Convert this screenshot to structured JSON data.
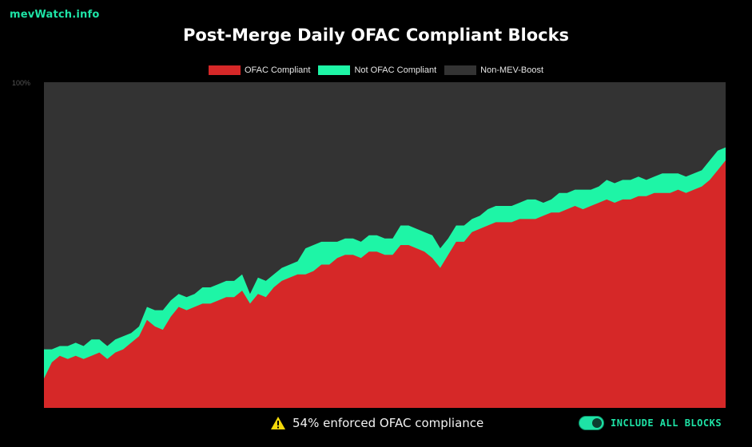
{
  "brand": "mevWatch.info",
  "chart_data": {
    "type": "area",
    "stacked": true,
    "percent": true,
    "title": "Post-Merge Daily OFAC Compliant Blocks",
    "ylim": [
      0,
      100
    ],
    "y_top_tick": "100%",
    "legend_position": "top",
    "grid": false,
    "series": [
      {
        "name": "OFAC Compliant",
        "color": "#d62828",
        "values": [
          9,
          14,
          16,
          15,
          16,
          15,
          16,
          17,
          15,
          17,
          18,
          20,
          22,
          27,
          25,
          24,
          28,
          31,
          30,
          31,
          32,
          32,
          33,
          34,
          34,
          36,
          32,
          35,
          34,
          37,
          39,
          40,
          41,
          41,
          42,
          44,
          44,
          46,
          47,
          47,
          46,
          48,
          48,
          47,
          47,
          50,
          50,
          49,
          48,
          46,
          43,
          47,
          51,
          51,
          54,
          55,
          56,
          57,
          57,
          57,
          58,
          58,
          58,
          59,
          60,
          60,
          61,
          62,
          61,
          62,
          63,
          64,
          63,
          64,
          64,
          65,
          65,
          66,
          66,
          66,
          67,
          66,
          67,
          68,
          70,
          73,
          76
        ]
      },
      {
        "name": "Not OFAC Compliant",
        "color": "#1ef5a6",
        "values": [
          9,
          4,
          3,
          4,
          4,
          4,
          5,
          4,
          4,
          4,
          4,
          3,
          3,
          4,
          5,
          6,
          5,
          4,
          4,
          4,
          5,
          5,
          5,
          5,
          5,
          5,
          3,
          5,
          5,
          4,
          4,
          4,
          4,
          8,
          8,
          7,
          7,
          5,
          5,
          5,
          5,
          5,
          5,
          5,
          5,
          6,
          6,
          6,
          6,
          7,
          6,
          5,
          5,
          5,
          4,
          4,
          5,
          5,
          5,
          5,
          5,
          6,
          6,
          4,
          4,
          6,
          5,
          5,
          6,
          5,
          5,
          6,
          6,
          6,
          6,
          6,
          5,
          5,
          6,
          6,
          5,
          5,
          5,
          5,
          6,
          6,
          4
        ]
      },
      {
        "name": "Non-MEV-Boost",
        "color": "#333333",
        "values": null
      }
    ]
  },
  "legend": [
    {
      "label": "OFAC Compliant",
      "color": "#d62828"
    },
    {
      "label": "Not OFAC Compliant",
      "color": "#1ef5a6"
    },
    {
      "label": "Non-MEV-Boost",
      "color": "#333333"
    }
  ],
  "footer": {
    "compliance_text": "54% enforced OFAC compliance",
    "warning_icon": "warning-triangle-icon",
    "toggle_label": "INCLUDE ALL BLOCKS",
    "toggle_on": true,
    "accent": "#1ee3a6"
  }
}
